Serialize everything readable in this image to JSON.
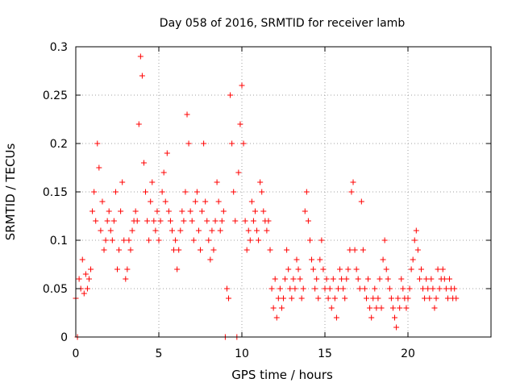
{
  "chart_data": {
    "type": "scatter",
    "title": "Day 058 of 2016, SRMTID for receiver lamb",
    "xlabel": "GPS time / hours",
    "ylabel": "SRMTID / TECUs",
    "xlim": [
      0,
      25
    ],
    "ylim": [
      0,
      0.3
    ],
    "xticks": [
      0,
      5,
      10,
      15,
      20
    ],
    "yticks": [
      0,
      0.05,
      0.1,
      0.15,
      0.2,
      0.25,
      0.3
    ],
    "xtick_labels": [
      "0",
      "5",
      "10",
      "15",
      "20"
    ],
    "ytick_labels": [
      "0",
      "0.05",
      "0.1",
      "0.15",
      "0.2",
      "0.25",
      "0.3"
    ],
    "grid": true,
    "marker": "+",
    "series": [
      {
        "name": "SRMTID",
        "color": "#ff0000",
        "points": [
          [
            0.0,
            0.04
          ],
          [
            0.1,
            0.0
          ],
          [
            0.2,
            0.06
          ],
          [
            0.3,
            0.05
          ],
          [
            0.4,
            0.08
          ],
          [
            0.5,
            0.045
          ],
          [
            0.6,
            0.065
          ],
          [
            0.7,
            0.05
          ],
          [
            0.8,
            0.06
          ],
          [
            0.9,
            0.07
          ],
          [
            1.0,
            0.13
          ],
          [
            1.1,
            0.15
          ],
          [
            1.2,
            0.12
          ],
          [
            1.3,
            0.2
          ],
          [
            1.4,
            0.175
          ],
          [
            1.5,
            0.11
          ],
          [
            1.6,
            0.14
          ],
          [
            1.7,
            0.09
          ],
          [
            1.8,
            0.1
          ],
          [
            1.9,
            0.12
          ],
          [
            2.0,
            0.13
          ],
          [
            2.1,
            0.11
          ],
          [
            2.2,
            0.1
          ],
          [
            2.3,
            0.12
          ],
          [
            2.4,
            0.15
          ],
          [
            2.5,
            0.07
          ],
          [
            2.6,
            0.09
          ],
          [
            2.7,
            0.13
          ],
          [
            2.8,
            0.16
          ],
          [
            2.9,
            0.1
          ],
          [
            3.0,
            0.06
          ],
          [
            3.1,
            0.07
          ],
          [
            3.2,
            0.1
          ],
          [
            3.3,
            0.09
          ],
          [
            3.4,
            0.11
          ],
          [
            3.5,
            0.12
          ],
          [
            3.6,
            0.13
          ],
          [
            3.7,
            0.12
          ],
          [
            3.8,
            0.22
          ],
          [
            3.9,
            0.29
          ],
          [
            4.0,
            0.27
          ],
          [
            4.1,
            0.18
          ],
          [
            4.2,
            0.15
          ],
          [
            4.3,
            0.12
          ],
          [
            4.4,
            0.1
          ],
          [
            4.5,
            0.14
          ],
          [
            4.6,
            0.16
          ],
          [
            4.7,
            0.12
          ],
          [
            4.8,
            0.11
          ],
          [
            4.9,
            0.13
          ],
          [
            5.0,
            0.1
          ],
          [
            5.1,
            0.12
          ],
          [
            5.2,
            0.15
          ],
          [
            5.3,
            0.17
          ],
          [
            5.4,
            0.14
          ],
          [
            5.5,
            0.19
          ],
          [
            5.6,
            0.13
          ],
          [
            5.7,
            0.12
          ],
          [
            5.8,
            0.11
          ],
          [
            5.9,
            0.09
          ],
          [
            6.0,
            0.1
          ],
          [
            6.1,
            0.07
          ],
          [
            6.2,
            0.09
          ],
          [
            6.3,
            0.11
          ],
          [
            6.4,
            0.13
          ],
          [
            6.5,
            0.12
          ],
          [
            6.6,
            0.15
          ],
          [
            6.7,
            0.23
          ],
          [
            6.8,
            0.2
          ],
          [
            6.9,
            0.13
          ],
          [
            7.0,
            0.12
          ],
          [
            7.1,
            0.1
          ],
          [
            7.2,
            0.14
          ],
          [
            7.3,
            0.15
          ],
          [
            7.4,
            0.11
          ],
          [
            7.5,
            0.09
          ],
          [
            7.6,
            0.13
          ],
          [
            7.7,
            0.2
          ],
          [
            7.8,
            0.14
          ],
          [
            7.9,
            0.12
          ],
          [
            8.0,
            0.1
          ],
          [
            8.1,
            0.08
          ],
          [
            8.2,
            0.11
          ],
          [
            8.3,
            0.09
          ],
          [
            8.4,
            0.12
          ],
          [
            8.5,
            0.16
          ],
          [
            8.6,
            0.14
          ],
          [
            8.7,
            0.11
          ],
          [
            8.8,
            0.12
          ],
          [
            8.9,
            0.13
          ],
          [
            9.0,
            0.0
          ],
          [
            9.1,
            0.05
          ],
          [
            9.2,
            0.04
          ],
          [
            9.3,
            0.25
          ],
          [
            9.4,
            0.2
          ],
          [
            9.5,
            0.15
          ],
          [
            9.6,
            0.12
          ],
          [
            9.7,
            0.0
          ],
          [
            9.8,
            0.17
          ],
          [
            9.9,
            0.22
          ],
          [
            10.0,
            0.26
          ],
          [
            10.1,
            0.2
          ],
          [
            10.2,
            0.12
          ],
          [
            10.3,
            0.09
          ],
          [
            10.4,
            0.11
          ],
          [
            10.5,
            0.1
          ],
          [
            10.6,
            0.14
          ],
          [
            10.7,
            0.12
          ],
          [
            10.8,
            0.13
          ],
          [
            10.9,
            0.11
          ],
          [
            11.0,
            0.1
          ],
          [
            11.1,
            0.16
          ],
          [
            11.2,
            0.15
          ],
          [
            11.3,
            0.13
          ],
          [
            11.4,
            0.12
          ],
          [
            11.5,
            0.11
          ],
          [
            11.6,
            0.12
          ],
          [
            11.7,
            0.09
          ],
          [
            11.8,
            0.05
          ],
          [
            11.9,
            0.03
          ],
          [
            12.0,
            0.06
          ],
          [
            12.1,
            0.02
          ],
          [
            12.2,
            0.04
          ],
          [
            12.3,
            0.05
          ],
          [
            12.4,
            0.03
          ],
          [
            12.5,
            0.04
          ],
          [
            12.6,
            0.06
          ],
          [
            12.7,
            0.09
          ],
          [
            12.8,
            0.07
          ],
          [
            12.9,
            0.05
          ],
          [
            13.0,
            0.04
          ],
          [
            13.1,
            0.06
          ],
          [
            13.2,
            0.05
          ],
          [
            13.3,
            0.08
          ],
          [
            13.4,
            0.07
          ],
          [
            13.5,
            0.06
          ],
          [
            13.6,
            0.04
          ],
          [
            13.7,
            0.05
          ],
          [
            13.8,
            0.13
          ],
          [
            13.9,
            0.15
          ],
          [
            14.0,
            0.12
          ],
          [
            14.1,
            0.1
          ],
          [
            14.2,
            0.08
          ],
          [
            14.3,
            0.07
          ],
          [
            14.4,
            0.05
          ],
          [
            14.5,
            0.06
          ],
          [
            14.6,
            0.04
          ],
          [
            14.7,
            0.08
          ],
          [
            14.8,
            0.1
          ],
          [
            14.9,
            0.07
          ],
          [
            15.0,
            0.05
          ],
          [
            15.1,
            0.06
          ],
          [
            15.2,
            0.04
          ],
          [
            15.3,
            0.05
          ],
          [
            15.4,
            0.03
          ],
          [
            15.5,
            0.06
          ],
          [
            15.6,
            0.04
          ],
          [
            15.7,
            0.02
          ],
          [
            15.8,
            0.05
          ],
          [
            15.9,
            0.07
          ],
          [
            16.0,
            0.06
          ],
          [
            16.1,
            0.05
          ],
          [
            16.2,
            0.04
          ],
          [
            16.3,
            0.06
          ],
          [
            16.4,
            0.07
          ],
          [
            16.5,
            0.09
          ],
          [
            16.6,
            0.15
          ],
          [
            16.7,
            0.16
          ],
          [
            16.8,
            0.09
          ],
          [
            16.9,
            0.07
          ],
          [
            17.0,
            0.06
          ],
          [
            17.1,
            0.05
          ],
          [
            17.2,
            0.14
          ],
          [
            17.3,
            0.09
          ],
          [
            17.4,
            0.05
          ],
          [
            17.5,
            0.04
          ],
          [
            17.6,
            0.06
          ],
          [
            17.7,
            0.03
          ],
          [
            17.8,
            0.02
          ],
          [
            17.9,
            0.04
          ],
          [
            18.0,
            0.05
          ],
          [
            18.1,
            0.03
          ],
          [
            18.2,
            0.04
          ],
          [
            18.3,
            0.06
          ],
          [
            18.4,
            0.03
          ],
          [
            18.5,
            0.08
          ],
          [
            18.6,
            0.1
          ],
          [
            18.7,
            0.07
          ],
          [
            18.8,
            0.06
          ],
          [
            18.9,
            0.05
          ],
          [
            19.0,
            0.04
          ],
          [
            19.1,
            0.03
          ],
          [
            19.2,
            0.02
          ],
          [
            19.3,
            0.01
          ],
          [
            19.4,
            0.04
          ],
          [
            19.5,
            0.03
          ],
          [
            19.6,
            0.06
          ],
          [
            19.7,
            0.05
          ],
          [
            19.8,
            0.04
          ],
          [
            19.9,
            0.03
          ],
          [
            20.0,
            0.04
          ],
          [
            20.1,
            0.05
          ],
          [
            20.2,
            0.07
          ],
          [
            20.3,
            0.08
          ],
          [
            20.4,
            0.1
          ],
          [
            20.5,
            0.11
          ],
          [
            20.6,
            0.09
          ],
          [
            20.7,
            0.06
          ],
          [
            20.8,
            0.07
          ],
          [
            20.9,
            0.05
          ],
          [
            21.0,
            0.04
          ],
          [
            21.1,
            0.06
          ],
          [
            21.2,
            0.05
          ],
          [
            21.3,
            0.04
          ],
          [
            21.4,
            0.06
          ],
          [
            21.5,
            0.05
          ],
          [
            21.6,
            0.03
          ],
          [
            21.7,
            0.04
          ],
          [
            21.8,
            0.07
          ],
          [
            21.9,
            0.05
          ],
          [
            22.0,
            0.06
          ],
          [
            22.1,
            0.07
          ],
          [
            22.2,
            0.06
          ],
          [
            22.3,
            0.05
          ],
          [
            22.4,
            0.04
          ],
          [
            22.5,
            0.06
          ],
          [
            22.6,
            0.05
          ],
          [
            22.7,
            0.04
          ],
          [
            22.8,
            0.05
          ],
          [
            22.9,
            0.04
          ]
        ]
      }
    ]
  }
}
